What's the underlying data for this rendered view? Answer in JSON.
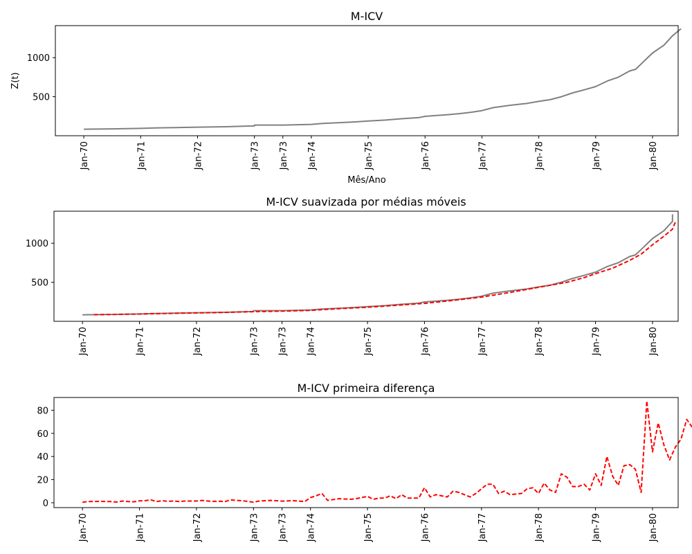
{
  "chart_data": [
    {
      "type": "line",
      "title": "M-ICV",
      "xlabel": "Mês/Ano",
      "ylabel": "Z(t)",
      "xlim": [
        -0.5,
        10.45
      ],
      "ylim": [
        0,
        1410
      ],
      "yticks": [
        500,
        1000
      ],
      "xticks": [
        {
          "x": 0,
          "label": "Jan-70"
        },
        {
          "x": 1,
          "label": "Jan-71"
        },
        {
          "x": 2,
          "label": "Jan-72"
        },
        {
          "x": 3,
          "label": "Jan-73"
        },
        {
          "x": 3.5,
          "label": "Jan-73"
        },
        {
          "x": 4,
          "label": "Jan-74"
        },
        {
          "x": 5,
          "label": "Jan-75"
        },
        {
          "x": 6,
          "label": "Jan-76"
        },
        {
          "x": 7,
          "label": "Jan-77"
        },
        {
          "x": 8,
          "label": "Jan-78"
        },
        {
          "x": 9,
          "label": "Jan-79"
        },
        {
          "x": 10,
          "label": "Jan-80"
        }
      ],
      "grid": false,
      "series": [
        {
          "style": "solid",
          "color": "#808080",
          "points": [
            [
              0,
              83
            ],
            [
              0.5,
              88
            ],
            [
              1,
              94
            ],
            [
              1.25,
              100
            ],
            [
              1.5,
              103
            ],
            [
              2,
              110
            ],
            [
              2.5,
              115
            ],
            [
              2.9,
              124
            ],
            [
              3,
              125
            ],
            [
              3,
              137
            ],
            [
              3.4,
              137
            ],
            [
              3.5,
              137
            ],
            [
              4,
              145
            ],
            [
              4.2,
              158
            ],
            [
              4.5,
              168
            ],
            [
              4.8,
              178
            ],
            [
              5,
              188
            ],
            [
              5.3,
              200
            ],
            [
              5.6,
              218
            ],
            [
              5.9,
              233
            ],
            [
              6,
              248
            ],
            [
              6.4,
              270
            ],
            [
              6.6,
              283
            ],
            [
              6.8,
              300
            ],
            [
              7,
              322
            ],
            [
              7.2,
              360
            ],
            [
              7.5,
              390
            ],
            [
              7.8,
              415
            ],
            [
              8,
              440
            ],
            [
              8.2,
              462
            ],
            [
              8.4,
              500
            ],
            [
              8.6,
              550
            ],
            [
              8.8,
              588
            ],
            [
              9,
              630
            ],
            [
              9.2,
              700
            ],
            [
              9.4,
              750
            ],
            [
              9.6,
              830
            ],
            [
              9.7,
              850
            ],
            [
              9.8,
              920
            ],
            [
              9.9,
              990
            ],
            [
              10,
              1060
            ],
            [
              10.2,
              1160
            ],
            [
              10.35,
              1280
            ],
            [
              10.5,
              1370
            ]
          ]
        }
      ]
    },
    {
      "type": "line",
      "title": "M-ICV suavizada por médias móveis",
      "xlim": [
        -0.5,
        10.45
      ],
      "ylim": [
        0,
        1410
      ],
      "yticks": [
        500,
        1000
      ],
      "xticks": [
        {
          "x": 0,
          "label": "Jan-70"
        },
        {
          "x": 1,
          "label": "Jan-71"
        },
        {
          "x": 2,
          "label": "Jan-72"
        },
        {
          "x": 3,
          "label": "Jan-73"
        },
        {
          "x": 3.5,
          "label": "Jan-73"
        },
        {
          "x": 4,
          "label": "Jan-74"
        },
        {
          "x": 5,
          "label": "Jan-75"
        },
        {
          "x": 6,
          "label": "Jan-76"
        },
        {
          "x": 7,
          "label": "Jan-77"
        },
        {
          "x": 8,
          "label": "Jan-78"
        },
        {
          "x": 9,
          "label": "Jan-79"
        },
        {
          "x": 10,
          "label": "Jan-80"
        }
      ],
      "grid": false,
      "series": [
        {
          "style": "solid",
          "color": "#808080",
          "points": [
            [
              0,
              83
            ],
            [
              0.5,
              88
            ],
            [
              1,
              94
            ],
            [
              1.25,
              100
            ],
            [
              1.5,
              103
            ],
            [
              2,
              110
            ],
            [
              2.5,
              115
            ],
            [
              2.9,
              124
            ],
            [
              3,
              125
            ],
            [
              3,
              137
            ],
            [
              3.4,
              137
            ],
            [
              3.5,
              137
            ],
            [
              4,
              145
            ],
            [
              4.2,
              158
            ],
            [
              4.5,
              168
            ],
            [
              4.8,
              178
            ],
            [
              5,
              188
            ],
            [
              5.3,
              200
            ],
            [
              5.6,
              218
            ],
            [
              5.9,
              233
            ],
            [
              6,
              248
            ],
            [
              6.4,
              270
            ],
            [
              6.6,
              283
            ],
            [
              6.8,
              300
            ],
            [
              7,
              322
            ],
            [
              7.2,
              360
            ],
            [
              7.5,
              390
            ],
            [
              7.8,
              415
            ],
            [
              8,
              440
            ],
            [
              8.2,
              462
            ],
            [
              8.4,
              500
            ],
            [
              8.6,
              550
            ],
            [
              8.8,
              588
            ],
            [
              9,
              630
            ],
            [
              9.2,
              700
            ],
            [
              9.4,
              750
            ],
            [
              9.6,
              830
            ],
            [
              9.7,
              850
            ],
            [
              9.8,
              920
            ],
            [
              9.9,
              990
            ],
            [
              10,
              1060
            ],
            [
              10.2,
              1160
            ],
            [
              10.35,
              1280
            ],
            [
              10.35,
              1370
            ]
          ]
        },
        {
          "style": "dashed",
          "color": "#ff0000",
          "points": [
            [
              0.2,
              85
            ],
            [
              0.5,
              88
            ],
            [
              1,
              93
            ],
            [
              1.5,
              101
            ],
            [
              2,
              107
            ],
            [
              2.5,
              114
            ],
            [
              3,
              123
            ],
            [
              3.5,
              130
            ],
            [
              4,
              140
            ],
            [
              4.5,
              162
            ],
            [
              5,
              180
            ],
            [
              5.5,
              205
            ],
            [
              6,
              230
            ],
            [
              6.5,
              268
            ],
            [
              7,
              310
            ],
            [
              7.5,
              370
            ],
            [
              8,
              435
            ],
            [
              8.5,
              500
            ],
            [
              8.8,
              560
            ],
            [
              9,
              610
            ],
            [
              9.3,
              680
            ],
            [
              9.6,
              780
            ],
            [
              9.8,
              860
            ],
            [
              10,
              980
            ],
            [
              10.2,
              1090
            ],
            [
              10.35,
              1180
            ],
            [
              10.4,
              1270
            ]
          ]
        }
      ]
    },
    {
      "type": "line",
      "title": "M-ICV primeira diferença",
      "xlim": [
        -0.5,
        10.45
      ],
      "ylim": [
        -4.2,
        91
      ],
      "yticks": [
        0,
        20,
        40,
        60,
        80
      ],
      "xticks": [
        {
          "x": 0,
          "label": "Jan-70"
        },
        {
          "x": 1,
          "label": "Jan-71"
        },
        {
          "x": 2,
          "label": "Jan-72"
        },
        {
          "x": 3,
          "label": "Jan-73"
        },
        {
          "x": 3.5,
          "label": "Jan-73"
        },
        {
          "x": 4,
          "label": "Jan-74"
        },
        {
          "x": 5,
          "label": "Jan-75"
        },
        {
          "x": 6,
          "label": "Jan-76"
        },
        {
          "x": 7,
          "label": "Jan-77"
        },
        {
          "x": 8,
          "label": "Jan-78"
        },
        {
          "x": 9,
          "label": "Jan-79"
        },
        {
          "x": 10,
          "label": "Jan-80"
        }
      ],
      "grid": false,
      "series": [
        {
          "style": "dashed",
          "color": "#ff0000",
          "points": [
            [
              0,
              0.5
            ],
            [
              0.1,
              1
            ],
            [
              0.3,
              1.2
            ],
            [
              0.5,
              1
            ],
            [
              0.6,
              0.6
            ],
            [
              0.7,
              1.5
            ],
            [
              0.8,
              1
            ],
            [
              0.9,
              0.8
            ],
            [
              1,
              1.6
            ],
            [
              1.1,
              1.8
            ],
            [
              1.2,
              2.5
            ],
            [
              1.3,
              1
            ],
            [
              1.4,
              1.8
            ],
            [
              1.5,
              1.2
            ],
            [
              1.6,
              1.5
            ],
            [
              1.7,
              1
            ],
            [
              1.8,
              1.5
            ],
            [
              2,
              1.5
            ],
            [
              2.1,
              2
            ],
            [
              2.2,
              1.5
            ],
            [
              2.3,
              1.2
            ],
            [
              2.4,
              1.3
            ],
            [
              2.5,
              1
            ],
            [
              2.6,
              2.5
            ],
            [
              2.7,
              2
            ],
            [
              2.8,
              1.8
            ],
            [
              3,
              0.5
            ],
            [
              3.1,
              1.5
            ],
            [
              3.3,
              2
            ],
            [
              3.5,
              1.4
            ],
            [
              3.7,
              1.8
            ],
            [
              3.9,
              1
            ],
            [
              4,
              4.5
            ],
            [
              4.1,
              6
            ],
            [
              4.2,
              8
            ],
            [
              4.3,
              2
            ],
            [
              4.5,
              3.5
            ],
            [
              4.7,
              3
            ],
            [
              4.8,
              3.5
            ],
            [
              5,
              5.5
            ],
            [
              5.1,
              3
            ],
            [
              5.2,
              4
            ],
            [
              5.3,
              4
            ],
            [
              5.4,
              6
            ],
            [
              5.5,
              3.5
            ],
            [
              5.6,
              7
            ],
            [
              5.7,
              4
            ],
            [
              5.9,
              4
            ],
            [
              6,
              13
            ],
            [
              6.1,
              5
            ],
            [
              6.2,
              7
            ],
            [
              6.3,
              6
            ],
            [
              6.4,
              5
            ],
            [
              6.5,
              10
            ],
            [
              6.6,
              9
            ],
            [
              6.7,
              7
            ],
            [
              6.8,
              5
            ],
            [
              6.9,
              8
            ],
            [
              7,
              12
            ],
            [
              7.1,
              16
            ],
            [
              7.2,
              16
            ],
            [
              7.3,
              8
            ],
            [
              7.4,
              10
            ],
            [
              7.5,
              7
            ],
            [
              7.7,
              8
            ],
            [
              7.8,
              12
            ],
            [
              7.9,
              13
            ],
            [
              8,
              8
            ],
            [
              8.1,
              17
            ],
            [
              8.2,
              11
            ],
            [
              8.3,
              9
            ],
            [
              8.4,
              25
            ],
            [
              8.5,
              22
            ],
            [
              8.6,
              14
            ],
            [
              8.7,
              14
            ],
            [
              8.8,
              16
            ],
            [
              8.9,
              11
            ],
            [
              9,
              25
            ],
            [
              9.1,
              15
            ],
            [
              9.2,
              40
            ],
            [
              9.3,
              23
            ],
            [
              9.4,
              15
            ],
            [
              9.5,
              32
            ],
            [
              9.6,
              33
            ],
            [
              9.7,
              29
            ],
            [
              9.8,
              9
            ],
            [
              9.9,
              88
            ],
            [
              10,
              44
            ],
            [
              10.1,
              69
            ],
            [
              10.2,
              50
            ],
            [
              10.3,
              37
            ],
            [
              10.4,
              48
            ],
            [
              10.5,
              55
            ],
            [
              10.6,
              72
            ],
            [
              10.7,
              65
            ]
          ]
        }
      ]
    }
  ]
}
